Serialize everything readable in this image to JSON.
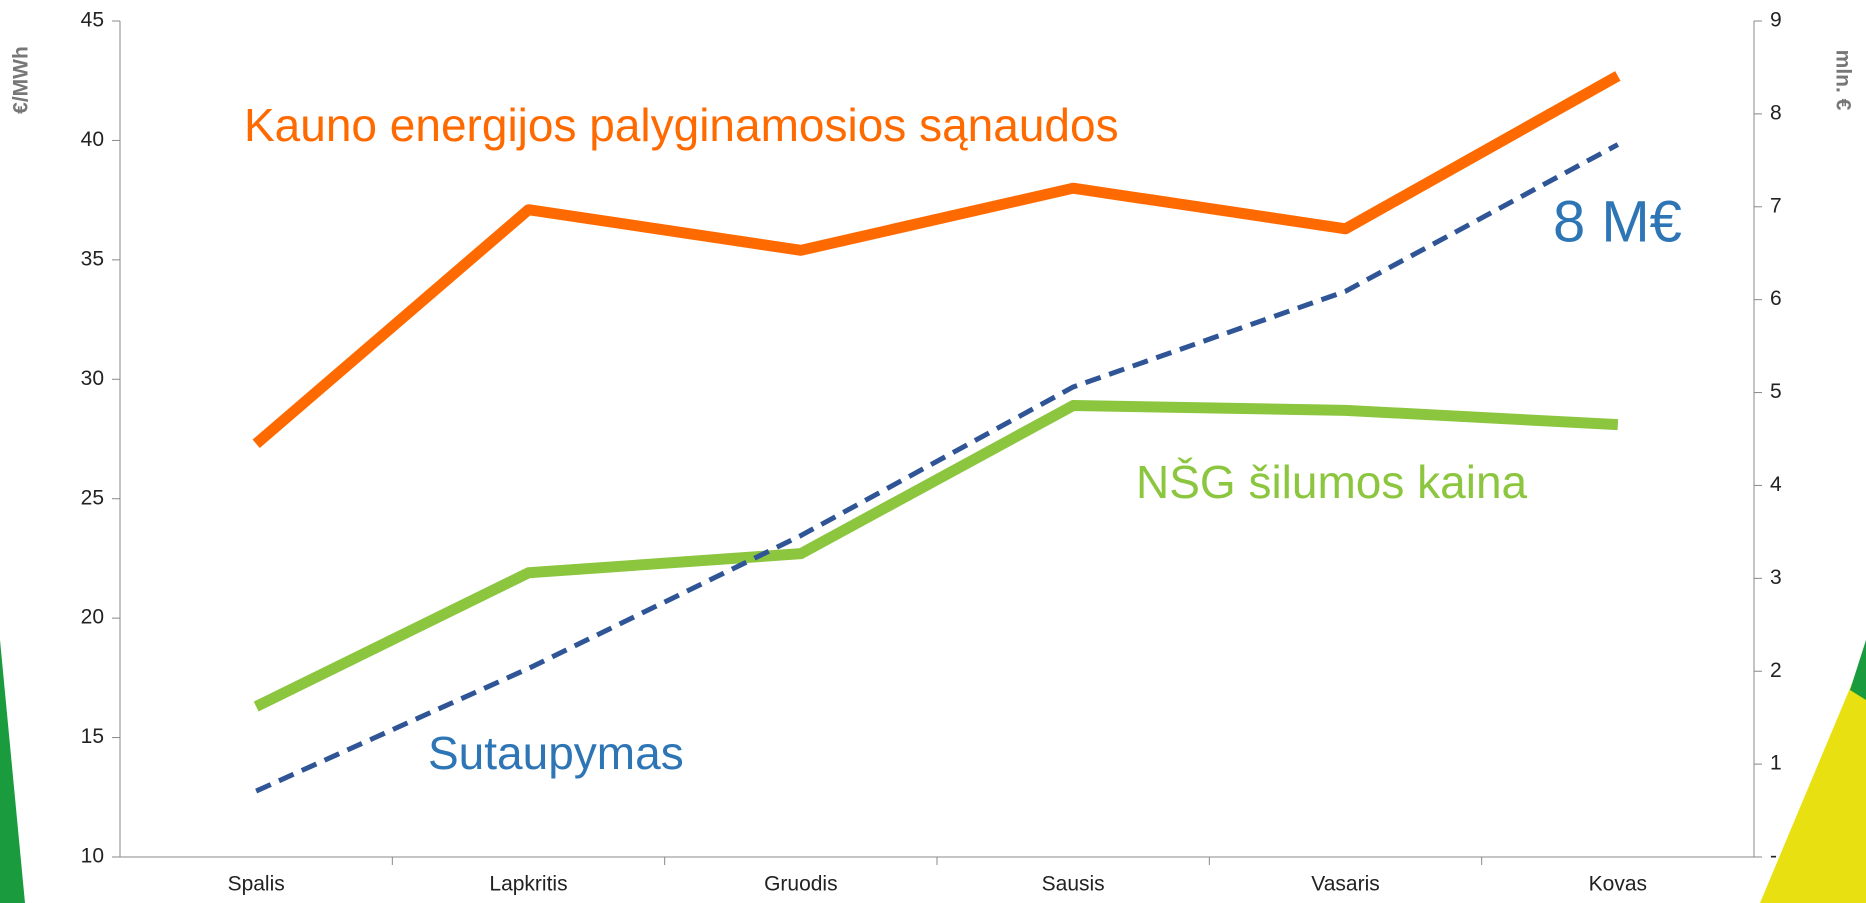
{
  "chart_data": {
    "type": "line",
    "categories": [
      "Spalis",
      "Lapkritis",
      "Gruodis",
      "Sausis",
      "Vasaris",
      "Kovas"
    ],
    "y_label": "€/MWh",
    "y2_label": "mln. €",
    "ylim": [
      10,
      45
    ],
    "yticks": [
      10,
      15,
      20,
      25,
      30,
      35,
      40,
      45
    ],
    "y2lim": [
      0,
      9
    ],
    "y2ticks": [
      {
        "value": 0,
        "label": "-"
      },
      1,
      2,
      3,
      4,
      5,
      6,
      7,
      8,
      9
    ],
    "series": [
      {
        "name": "Kauno energijos palyginamosios sąnaudos",
        "color": "#ff6a00",
        "values": [
          27.3,
          37.1,
          35.4,
          38.0,
          36.3,
          42.7
        ]
      },
      {
        "name": "NŠG šilumos kaina",
        "color": "#8cc63f",
        "values": [
          16.3,
          21.9,
          22.7,
          28.9,
          28.7,
          28.1
        ]
      },
      {
        "name": "Sutaupymas",
        "color": "#2f5597",
        "label_color": "#2e75b6",
        "dashed": true,
        "axis": "y2",
        "values": [
          0.71,
          2.03,
          3.46,
          5.06,
          6.09,
          7.67
        ]
      }
    ],
    "annotations": [
      {
        "text": "8 M€",
        "color": "#2e75b6"
      }
    ]
  }
}
